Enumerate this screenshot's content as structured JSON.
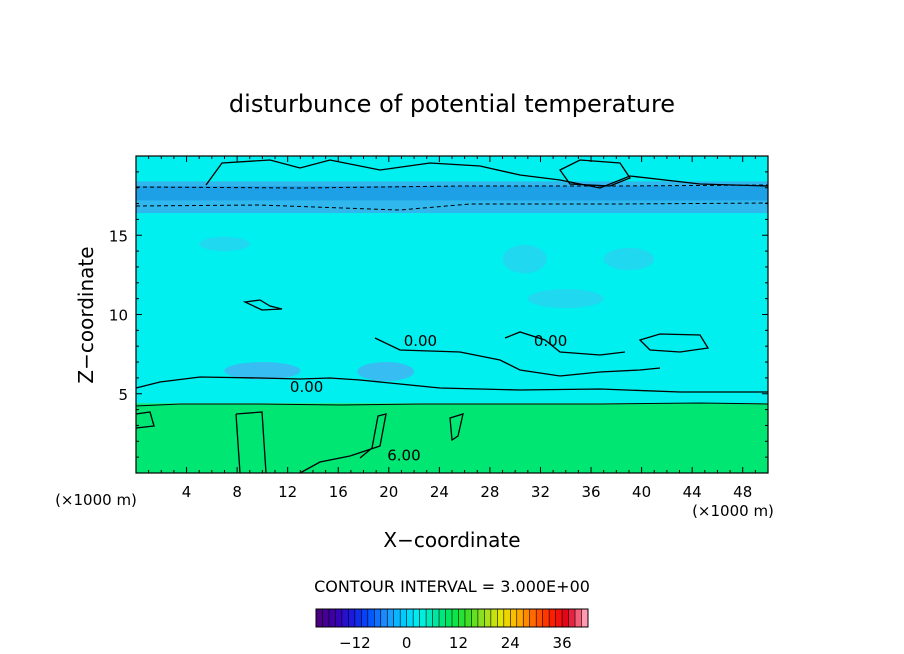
{
  "chart_data": {
    "type": "contour",
    "title": "disturbunce of potential temperature",
    "xlabel": "X−coordinate",
    "ylabel": "Z−coordinate",
    "x_unit_left": "(×1000 m)",
    "x_unit_right": "(×1000 m)",
    "xlim": [
      0,
      50
    ],
    "ylim": [
      0,
      20
    ],
    "xticks": [
      4,
      8,
      12,
      16,
      20,
      24,
      28,
      32,
      36,
      40,
      44,
      48
    ],
    "yticks": [
      5,
      10,
      15
    ],
    "contour_labels": [
      {
        "text": "0.00",
        "x": 22.5,
        "y": 8.0
      },
      {
        "text": "0.00",
        "x": 32.8,
        "y": 8.0
      },
      {
        "text": "0.00",
        "x": 13.5,
        "y": 5.1
      },
      {
        "text": "6.00",
        "x": 21.2,
        "y": 0.8
      }
    ],
    "fields": [
      {
        "name": "upper band",
        "y0": 16.4,
        "y1": 18.4,
        "color": "#30b8ee"
      },
      {
        "name": "upper core",
        "y0": 17.2,
        "y1": 18.1,
        "color": "#1ea0e6"
      },
      {
        "name": "mid layer",
        "y0": 4.4,
        "y1": 20,
        "color": "#00f0f0"
      },
      {
        "name": "lower layer",
        "y0": 0,
        "y1": 4.4,
        "color": "#00e673"
      }
    ],
    "patches": [
      {
        "x": 7,
        "y": 5.9,
        "w": 6,
        "h": 1.1,
        "color": "#38bdf2"
      },
      {
        "x": 17.5,
        "y": 5.8,
        "w": 4.5,
        "h": 1.2,
        "color": "#38bdf2"
      },
      {
        "x": 31,
        "y": 10.4,
        "w": 6,
        "h": 1.2,
        "color": "#20d8f0"
      },
      {
        "x": 29,
        "y": 12.6,
        "w": 3.5,
        "h": 1.8,
        "color": "#20d8f0"
      },
      {
        "x": 37,
        "y": 12.8,
        "w": 4,
        "h": 1.4,
        "color": "#20d8f0"
      },
      {
        "x": 5,
        "y": 14,
        "w": 4,
        "h": 0.9,
        "color": "#20d8f0"
      }
    ],
    "contour_interval": "CONTOUR INTERVAL = 3.000E+00",
    "colorbar": {
      "min": -21,
      "max": 42,
      "ticks": [
        -12,
        0,
        12,
        24,
        36
      ],
      "colors": [
        "#4b0082",
        "#3a00b0",
        "#1a1ae0",
        "#0050ff",
        "#1e90ff",
        "#00c8ff",
        "#00f0f0",
        "#00e6a0",
        "#00e650",
        "#40e020",
        "#a0e020",
        "#e6e600",
        "#ffb000",
        "#ff6000",
        "#ff2000",
        "#e00020",
        "#ff9ab0"
      ]
    }
  }
}
